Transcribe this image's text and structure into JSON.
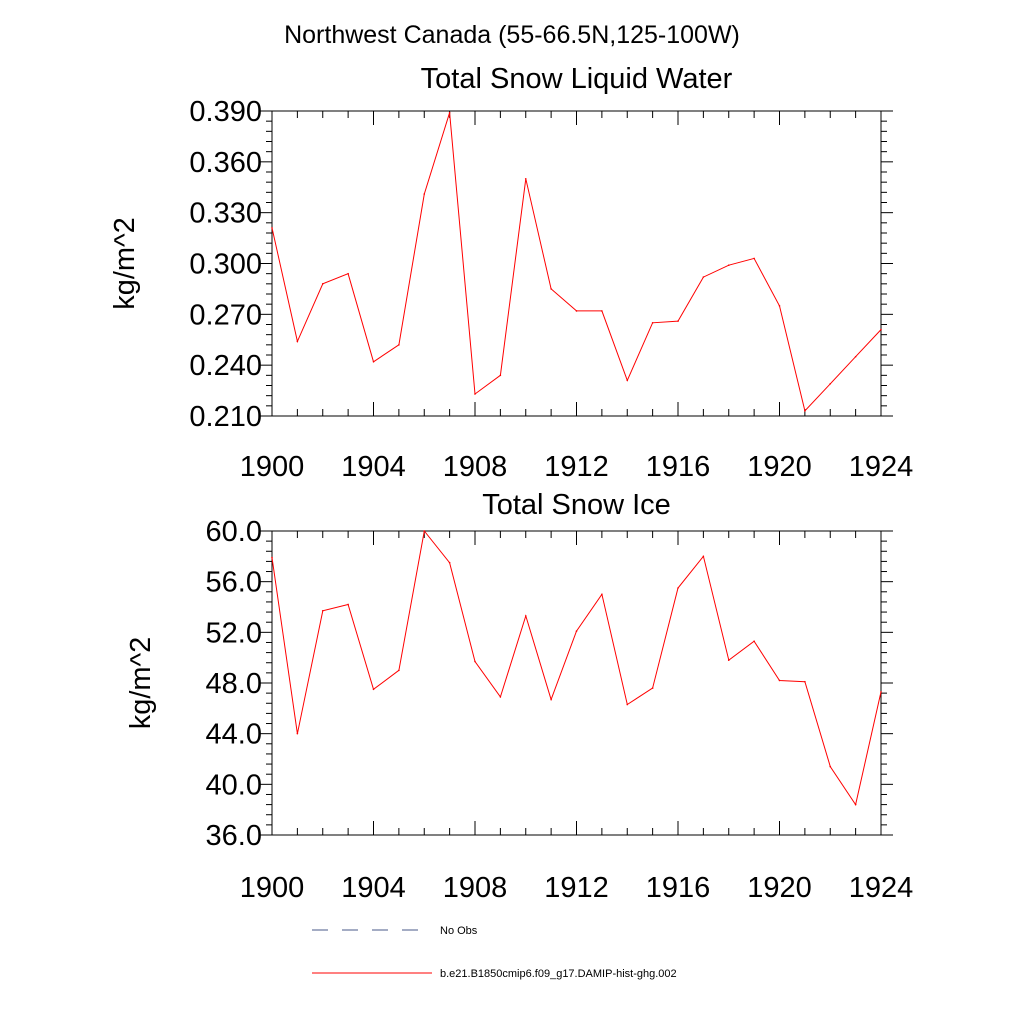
{
  "figure": {
    "suptitle": "Northwest Canada (55-66.5N,125-100W)"
  },
  "legend": {
    "items": [
      {
        "label": "No Obs",
        "style": "dashed",
        "color": "#4a5a8a"
      },
      {
        "label": "b.e21.B1850cmip6.f09_g17.DAMIP-hist-ghg.002",
        "style": "solid",
        "color": "#ff0000"
      }
    ]
  },
  "chart_data": [
    {
      "type": "line",
      "title": "Total Snow Liquid Water",
      "xlabel": "",
      "ylabel": "kg/m^2",
      "xlim": [
        1900,
        1924
      ],
      "ylim": [
        0.21,
        0.39
      ],
      "xticks": [
        1900,
        1904,
        1908,
        1912,
        1916,
        1920,
        1924
      ],
      "xtick_labels": [
        "1900",
        "1904",
        "1908",
        "1912",
        "1916",
        "1920",
        "1924"
      ],
      "yticks": [
        0.21,
        0.24,
        0.27,
        0.3,
        0.33,
        0.36,
        0.39
      ],
      "ytick_labels": [
        "0.210",
        "0.240",
        "0.270",
        "0.300",
        "0.330",
        "0.360",
        "0.390"
      ],
      "grid": false,
      "series": [
        {
          "name": "b.e21.B1850cmip6.f09_g17.DAMIP-hist-ghg.002",
          "color": "#ff0000",
          "x": [
            1900,
            1901,
            1902,
            1903,
            1904,
            1905,
            1906,
            1907,
            1908,
            1909,
            1910,
            1911,
            1912,
            1913,
            1914,
            1915,
            1916,
            1917,
            1918,
            1919,
            1920,
            1921,
            1922,
            1923,
            1924
          ],
          "values": [
            0.321,
            0.254,
            0.288,
            0.294,
            0.242,
            0.252,
            0.341,
            0.389,
            0.223,
            0.234,
            0.35,
            0.285,
            0.272,
            0.272,
            0.231,
            0.265,
            0.266,
            0.292,
            0.299,
            0.303,
            0.275,
            0.213,
            0.229,
            0.245,
            0.261
          ]
        }
      ]
    },
    {
      "type": "line",
      "title": "Total Snow Ice",
      "xlabel": "",
      "ylabel": "kg/m^2",
      "xlim": [
        1900,
        1924
      ],
      "ylim": [
        36.0,
        60.0
      ],
      "xticks": [
        1900,
        1904,
        1908,
        1912,
        1916,
        1920,
        1924
      ],
      "xtick_labels": [
        "1900",
        "1904",
        "1908",
        "1912",
        "1916",
        "1920",
        "1924"
      ],
      "yticks": [
        36,
        40,
        44,
        48,
        52,
        56,
        60
      ],
      "ytick_labels": [
        "36.0",
        "40.0",
        "44.0",
        "48.0",
        "52.0",
        "56.0",
        "60.0"
      ],
      "grid": false,
      "series": [
        {
          "name": "b.e21.B1850cmip6.f09_g17.DAMIP-hist-ghg.002",
          "color": "#ff0000",
          "x": [
            1900,
            1901,
            1902,
            1903,
            1904,
            1905,
            1906,
            1907,
            1908,
            1909,
            1910,
            1911,
            1912,
            1913,
            1914,
            1915,
            1916,
            1917,
            1918,
            1919,
            1920,
            1921,
            1922,
            1923,
            1924
          ],
          "values": [
            57.9,
            44.0,
            53.7,
            54.2,
            47.5,
            49.0,
            60.0,
            57.5,
            49.7,
            46.9,
            53.3,
            46.7,
            52.1,
            55.0,
            46.3,
            47.6,
            55.5,
            58.0,
            49.8,
            51.3,
            48.2,
            48.1,
            41.4,
            38.4,
            47.3
          ]
        }
      ]
    }
  ]
}
